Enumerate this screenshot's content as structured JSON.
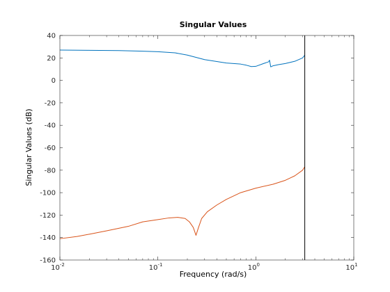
{
  "chart_data": {
    "type": "line",
    "title": "Singular Values",
    "xlabel": "Frequency (rad/s)",
    "ylabel": "Singular Values (dB)",
    "xscale": "log",
    "xlim": [
      0.01,
      10
    ],
    "ylim": [
      -160,
      40
    ],
    "yticks": [
      40,
      20,
      0,
      -20,
      -40,
      -60,
      -80,
      -100,
      -120,
      -140,
      -160
    ],
    "xtick_labels": [
      {
        "base": "10",
        "exp": "-2"
      },
      {
        "base": "10",
        "exp": "-1"
      },
      {
        "base": "10",
        "exp": "0"
      },
      {
        "base": "10",
        "exp": "1"
      }
    ],
    "grid": false,
    "vertical_line_x": 3.16,
    "colors": {
      "series1": "#0072bd",
      "series2": "#d95319",
      "vline": "#000000",
      "axes": "#262626"
    },
    "series": [
      {
        "x": [
          0.01,
          0.02,
          0.04,
          0.07,
          0.1,
          0.15,
          0.2,
          0.3,
          0.5,
          0.7,
          0.8,
          0.9,
          1.0,
          1.2,
          1.35,
          1.38,
          1.42,
          1.5,
          1.7,
          2.0,
          2.5,
          3.0,
          3.16
        ],
        "y": [
          27,
          26.8,
          26.5,
          26,
          25.5,
          24.5,
          22.5,
          18.5,
          15.5,
          14.5,
          13.5,
          12.3,
          12.5,
          15,
          16.5,
          18,
          12,
          13,
          14,
          15,
          17,
          20,
          22.5
        ]
      },
      {
        "x": [
          0.01,
          0.015,
          0.02,
          0.03,
          0.05,
          0.07,
          0.1,
          0.13,
          0.16,
          0.19,
          0.21,
          0.23,
          0.245,
          0.26,
          0.28,
          0.32,
          0.4,
          0.5,
          0.7,
          1.0,
          1.5,
          2.0,
          2.5,
          3.0,
          3.16
        ],
        "y": [
          -141,
          -139,
          -137,
          -134,
          -130,
          -126,
          -124,
          -122.5,
          -122,
          -123,
          -126,
          -131,
          -138,
          -131,
          -123,
          -117,
          -111,
          -106,
          -100,
          -96,
          -92.5,
          -89,
          -85,
          -80,
          -77
        ]
      }
    ]
  }
}
